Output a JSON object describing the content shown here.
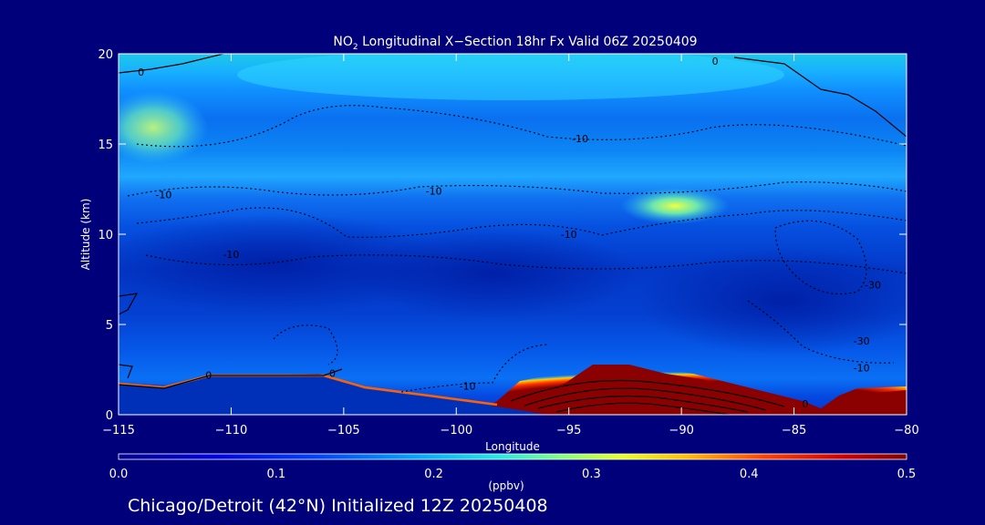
{
  "title_prefix": "NO",
  "title_sub": "2",
  "title_rest": " Longitudinal X−Section 18hr  Fx Valid 06Z 20250409",
  "footer": "Chicago/Detroit (42°N) Initialized 12Z 20250408",
  "chart_data": {
    "type": "heatmap",
    "title": "NO2 Longitudinal X-Section 18hr  Fx Valid 06Z 20250409",
    "xlabel": "Longitude",
    "ylabel": "Altitude (km)",
    "xlim": [
      -115,
      -80
    ],
    "ylim": [
      0,
      20
    ],
    "x_ticks": [
      -115,
      -110,
      -105,
      -100,
      -95,
      -90,
      -85,
      -80
    ],
    "x_tick_labels": [
      "−115",
      "−110",
      "−105",
      "−100",
      "−95",
      "−90",
      "−85",
      "−80"
    ],
    "y_ticks": [
      0,
      5,
      10,
      15,
      20
    ],
    "colorbar": {
      "label": "(ppbv)",
      "range": [
        0.0,
        0.5
      ],
      "ticks": [
        "0.0",
        "0.1",
        "0.2",
        "0.3",
        "0.4",
        "0.5"
      ]
    },
    "colors": {
      "background": "#00007a",
      "low": "#0000b4",
      "high": "#8b0000"
    },
    "value_bands": [
      {
        "alt_range": [
          19,
          20
        ],
        "no2_ppbv": 0.18
      },
      {
        "alt_range": [
          16,
          18
        ],
        "no2_ppbv": 0.17
      },
      {
        "alt_range": [
          13,
          15
        ],
        "no2_ppbv": 0.12
      },
      {
        "alt_range": [
          12,
          13
        ],
        "no2_ppbv": 0.2
      },
      {
        "alt_range": [
          7,
          11
        ],
        "no2_ppbv": 0.05
      },
      {
        "alt_range": [
          3,
          6
        ],
        "no2_ppbv": 0.06
      },
      {
        "alt_range": [
          1.5,
          2.5
        ],
        "no2_ppbv": 0.15
      }
    ],
    "hotspots": [
      {
        "lon": -113.5,
        "alt": 16,
        "no2_ppbv": 0.26
      },
      {
        "lon": -90.5,
        "alt": 11.5,
        "no2_ppbv": 0.3
      }
    ],
    "surface_plume": {
      "lon_range": [
        -98,
        -81
      ],
      "peak_lon": -93,
      "peak_alt": 3,
      "no2_ppbv": 0.5
    },
    "contour_labels": [
      {
        "lon": -114,
        "alt": 19,
        "text": "0"
      },
      {
        "lon": -88.5,
        "alt": 19.6,
        "text": "0"
      },
      {
        "lon": -94.5,
        "alt": 15.3,
        "text": "-10"
      },
      {
        "lon": -113,
        "alt": 12.2,
        "text": "-10"
      },
      {
        "lon": -101,
        "alt": 12.4,
        "text": "-10"
      },
      {
        "lon": -95,
        "alt": 10,
        "text": "-10"
      },
      {
        "lon": -110,
        "alt": 8.9,
        "text": "-10"
      },
      {
        "lon": -81.5,
        "alt": 7.2,
        "text": "-30"
      },
      {
        "lon": -82,
        "alt": 4.1,
        "text": "-30"
      },
      {
        "lon": -82,
        "alt": 2.6,
        "text": "-10"
      },
      {
        "lon": -105.5,
        "alt": 2.3,
        "text": "0"
      },
      {
        "lon": -111,
        "alt": 2.2,
        "text": "0"
      },
      {
        "lon": -99.5,
        "alt": 1.6,
        "text": "-10"
      },
      {
        "lon": -84.5,
        "alt": 0.6,
        "text": "0"
      }
    ]
  }
}
